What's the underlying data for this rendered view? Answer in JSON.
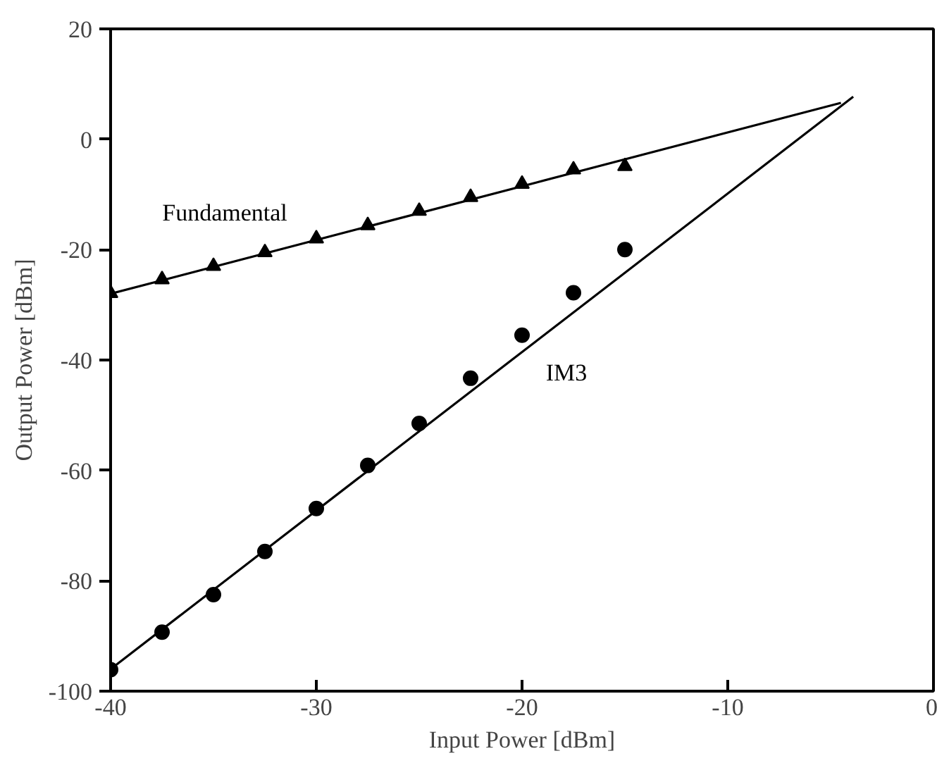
{
  "chart_data": {
    "type": "scatter",
    "xlabel": "Input Power [dBm]",
    "ylabel": "Output Power [dBm]",
    "xlim": [
      -40,
      0
    ],
    "ylim": [
      -100,
      20
    ],
    "xticks": [
      -40,
      -30,
      -20,
      -10,
      0
    ],
    "yticks": [
      -100,
      -80,
      -60,
      -40,
      -20,
      0,
      20
    ],
    "grid": false,
    "series": [
      {
        "name": "Fundamental",
        "marker": "triangle",
        "color": "#000000",
        "x": [
          -40,
          -37.5,
          -35,
          -32.5,
          -30,
          -27.5,
          -25,
          -22.5,
          -20,
          -17.5,
          -15
        ],
        "values": [
          -27.9,
          -25.4,
          -23.0,
          -20.5,
          -18.0,
          -15.6,
          -13.0,
          -10.5,
          -8.1,
          -5.5,
          -4.9
        ]
      },
      {
        "name": "IM3",
        "marker": "circle",
        "color": "#000000",
        "x": [
          -40,
          -37.5,
          -35,
          -32.5,
          -30,
          -27.5,
          -25,
          -22.5,
          -20,
          -17.5,
          -15
        ],
        "values": [
          -96.1,
          -89.3,
          -82.5,
          -74.7,
          -66.9,
          -59.1,
          -51.5,
          -43.3,
          -35.5,
          -27.8,
          -20.0
        ]
      },
      {
        "type": "line",
        "marker": "none",
        "line_style": "solid",
        "color": "#000000",
        "x": [
          -40,
          -4.5
        ],
        "values": [
          -28,
          6.6
        ]
      },
      {
        "type": "line",
        "marker": "none",
        "line_style": "solid",
        "color": "#000000",
        "x": [
          -40,
          -3.9
        ],
        "values": [
          -96,
          7.7
        ]
      }
    ]
  }
}
